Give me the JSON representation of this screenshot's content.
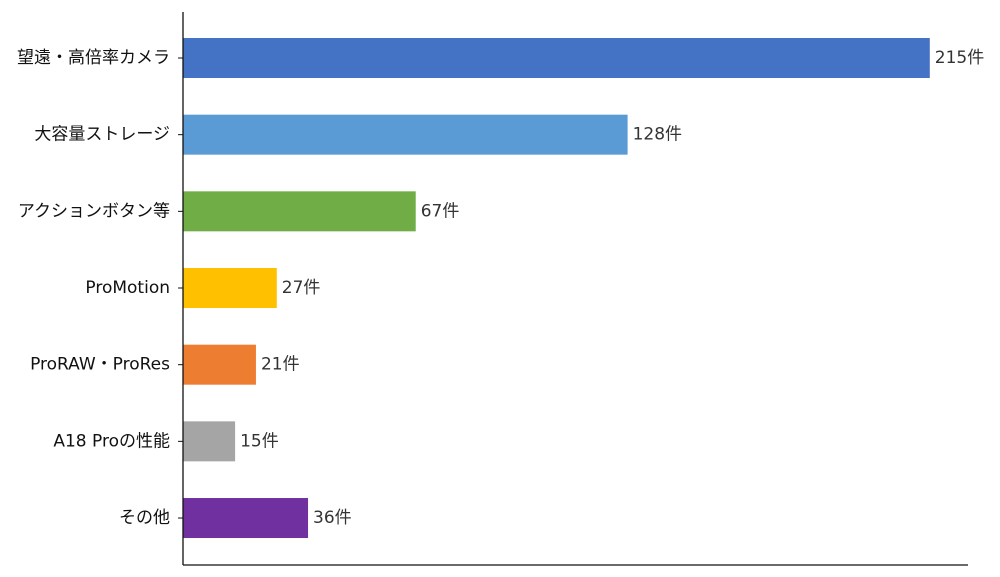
{
  "chart_data": {
    "type": "barh",
    "categories": [
      "望遠・高倍率カメラ",
      "大容量ストレージ",
      "アクションボタン等",
      "ProMotion",
      "ProRAW・ProRes",
      "A18 Proの性能",
      "その他"
    ],
    "values": [
      215,
      128,
      67,
      27,
      21,
      15,
      36
    ],
    "value_labels": [
      "215件",
      "128件",
      "67件",
      "27件",
      "21件",
      "15件",
      "36件"
    ],
    "colors": [
      "#4472c4",
      "#5b9bd5",
      "#70ad47",
      "#ffc000",
      "#ed7d31",
      "#a5a5a5",
      "#7030a0"
    ],
    "xlim": [
      0,
      226
    ]
  }
}
